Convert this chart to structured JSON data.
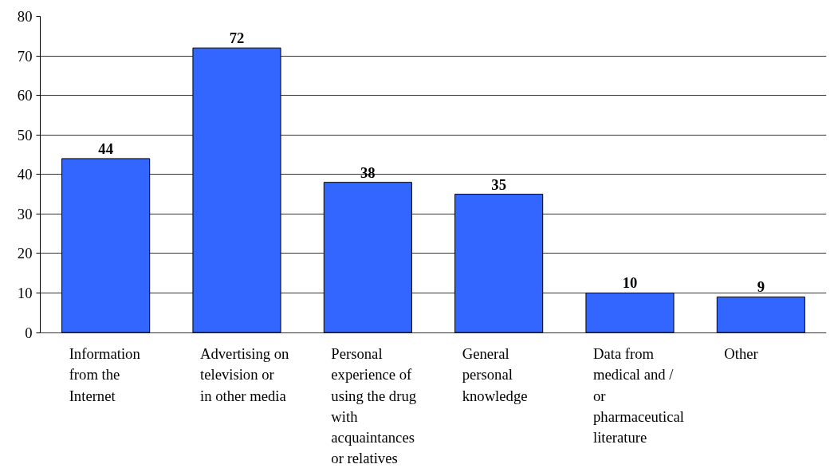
{
  "chart_data": {
    "type": "bar",
    "categories": [
      "Information from the Internet",
      "Advertising on television or in other media",
      "Personal experience of using the drug with acquaintances or relatives",
      "General personal knowledge",
      "Data from medical and / or pharmaceutical literature",
      "Other"
    ],
    "values": [
      44,
      72,
      38,
      35,
      10,
      9
    ],
    "color": "#3366ff",
    "ylim": [
      0,
      80
    ],
    "yticks": [
      0,
      10,
      20,
      30,
      40,
      50,
      60,
      70,
      80
    ],
    "grid": "y",
    "data_labels": true
  }
}
